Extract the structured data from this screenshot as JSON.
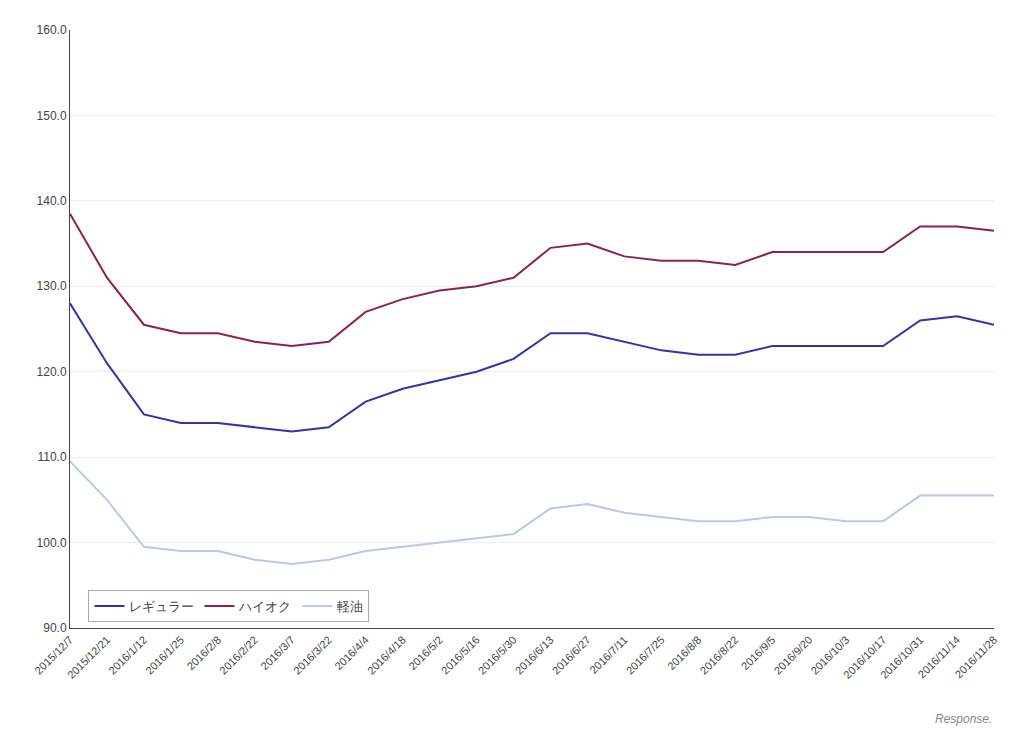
{
  "chart_data": {
    "type": "line",
    "categories": [
      "2015/12/7",
      "2015/12/21",
      "2016/1/12",
      "2016/1/25",
      "2016/2/8",
      "2016/2/22",
      "2016/3/7",
      "2016/3/22",
      "2016/4/4",
      "2016/4/18",
      "2016/5/2",
      "2016/5/16",
      "2016/5/30",
      "2016/6/13",
      "2016/6/27",
      "2016/7/11",
      "2016/7/25",
      "2016/8/8",
      "2016/8/22",
      "2016/9/5",
      "2016/9/20",
      "2016/10/3",
      "2016/10/17",
      "2016/10/31",
      "2016/11/14",
      "2016/11/28"
    ],
    "series": [
      {
        "name": "レギュラー",
        "color": "#3333aa",
        "values": [
          128.0,
          121.0,
          115.0,
          114.0,
          114.0,
          113.5,
          113.0,
          113.5,
          116.5,
          118.0,
          119.0,
          120.0,
          121.5,
          124.5,
          124.5,
          123.5,
          122.5,
          122.0,
          122.0,
          123.0,
          123.0,
          123.0,
          123.0,
          126.0,
          126.5,
          125.5
        ]
      },
      {
        "name": "ハイオク",
        "color": "#8b2252",
        "values": [
          138.5,
          131.0,
          125.5,
          124.5,
          124.5,
          123.5,
          123.0,
          123.5,
          127.0,
          128.5,
          129.5,
          130.0,
          131.0,
          134.5,
          135.0,
          133.5,
          133.0,
          133.0,
          132.5,
          134.0,
          134.0,
          134.0,
          134.0,
          137.0,
          137.0,
          136.5
        ]
      },
      {
        "name": "軽油",
        "color": "#b8c8e8",
        "values": [
          109.5,
          105.0,
          99.5,
          99.0,
          99.0,
          98.0,
          97.5,
          98.0,
          99.0,
          99.5,
          100.0,
          100.5,
          101.0,
          104.0,
          104.5,
          103.5,
          103.0,
          102.5,
          102.5,
          103.0,
          103.0,
          102.5,
          102.5,
          105.5,
          105.5,
          105.5
        ]
      }
    ],
    "ylim": [
      90.0,
      160.0
    ],
    "yticks": [
      {
        "value": 90.0,
        "label": "90.0"
      },
      {
        "value": 100.0,
        "label": "100.0"
      },
      {
        "value": 110.0,
        "label": "110.0"
      },
      {
        "value": 120.0,
        "label": "120.0"
      },
      {
        "value": 130.0,
        "label": "130.0"
      },
      {
        "value": 140.0,
        "label": "140.0"
      },
      {
        "value": 150.0,
        "label": "150.0"
      },
      {
        "value": 160.0,
        "label": "160.0"
      }
    ],
    "grid": true,
    "legend": "lower left",
    "annotations": [
      "Response."
    ]
  }
}
